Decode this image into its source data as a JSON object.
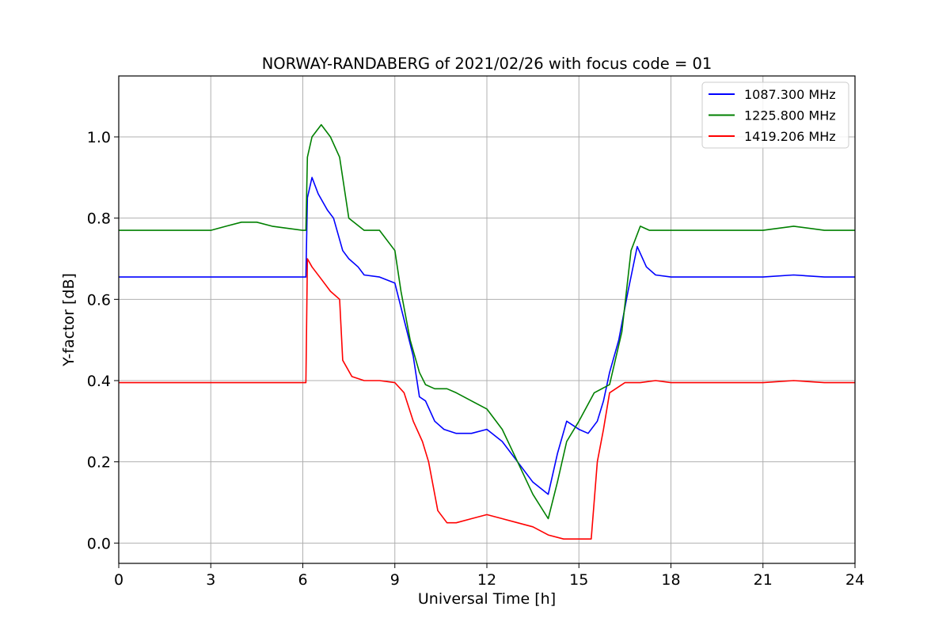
{
  "chart_data": {
    "type": "line",
    "title": "NORWAY-RANDABERG of 2021/02/26 with focus code = 01",
    "xlabel": "Universal Time [h]",
    "ylabel": "Y-factor [dB]",
    "xlim": [
      0,
      24
    ],
    "ylim": [
      -0.05,
      1.15
    ],
    "xticks": [
      0,
      3,
      6,
      9,
      12,
      15,
      18,
      21,
      24
    ],
    "yticks": [
      0.0,
      0.2,
      0.4,
      0.6,
      0.8,
      1.0
    ],
    "xtick_labels": [
      "0",
      "3",
      "6",
      "9",
      "12",
      "15",
      "18",
      "21",
      "24"
    ],
    "ytick_labels": [
      "0.0",
      "0.2",
      "0.4",
      "0.6",
      "0.8",
      "1.0"
    ],
    "grid": true,
    "legend_position": "top-right",
    "series": [
      {
        "name": "1087.300 MHz",
        "color": "#0000ff",
        "x": [
          0,
          1,
          2,
          3,
          4,
          5,
          6,
          6.1,
          6.15,
          6.3,
          6.5,
          6.8,
          7.0,
          7.3,
          7.5,
          7.8,
          8.0,
          8.5,
          9.0,
          9.3,
          9.6,
          9.8,
          10.0,
          10.3,
          10.6,
          11.0,
          11.5,
          12.0,
          12.5,
          13.0,
          13.5,
          14.0,
          14.3,
          14.6,
          15.0,
          15.3,
          15.6,
          15.8,
          16.0,
          16.3,
          16.6,
          16.9,
          17.2,
          17.5,
          18.0,
          19,
          20,
          21,
          22,
          23,
          24
        ],
        "y": [
          0.655,
          0.655,
          0.655,
          0.655,
          0.655,
          0.655,
          0.655,
          0.655,
          0.85,
          0.9,
          0.86,
          0.82,
          0.8,
          0.72,
          0.7,
          0.68,
          0.66,
          0.655,
          0.64,
          0.55,
          0.46,
          0.36,
          0.35,
          0.3,
          0.28,
          0.27,
          0.27,
          0.28,
          0.25,
          0.2,
          0.15,
          0.12,
          0.22,
          0.3,
          0.28,
          0.27,
          0.3,
          0.35,
          0.42,
          0.5,
          0.62,
          0.73,
          0.68,
          0.66,
          0.655,
          0.655,
          0.655,
          0.655,
          0.66,
          0.655,
          0.655
        ]
      },
      {
        "name": "1225.800 MHz",
        "color": "#008000",
        "x": [
          0,
          1,
          2,
          3,
          3.5,
          4,
          4.5,
          5,
          6.0,
          6.1,
          6.15,
          6.3,
          6.6,
          6.9,
          7.2,
          7.5,
          8.0,
          8.5,
          9.0,
          9.2,
          9.5,
          9.8,
          10.0,
          10.3,
          10.7,
          11.0,
          11.5,
          12.0,
          12.5,
          13.0,
          13.5,
          14.0,
          14.3,
          14.6,
          15.0,
          15.5,
          16.0,
          16.4,
          16.7,
          17.0,
          17.3,
          17.5,
          18.0,
          19,
          20,
          21,
          22,
          23,
          24
        ],
        "y": [
          0.77,
          0.77,
          0.77,
          0.77,
          0.78,
          0.79,
          0.79,
          0.78,
          0.77,
          0.77,
          0.95,
          1.0,
          1.03,
          1.0,
          0.95,
          0.8,
          0.77,
          0.77,
          0.72,
          0.62,
          0.5,
          0.42,
          0.39,
          0.38,
          0.38,
          0.37,
          0.35,
          0.33,
          0.28,
          0.2,
          0.12,
          0.06,
          0.15,
          0.25,
          0.3,
          0.37,
          0.39,
          0.52,
          0.72,
          0.78,
          0.77,
          0.77,
          0.77,
          0.77,
          0.77,
          0.77,
          0.78,
          0.77,
          0.77
        ]
      },
      {
        "name": "1419.206 MHz",
        "color": "#ff0000",
        "x": [
          0,
          1,
          2,
          3,
          4,
          5,
          6.0,
          6.1,
          6.15,
          6.3,
          6.6,
          6.9,
          7.2,
          7.3,
          7.6,
          8.0,
          8.5,
          9.0,
          9.3,
          9.6,
          9.9,
          10.1,
          10.4,
          10.7,
          11.0,
          11.5,
          12.0,
          12.5,
          13.0,
          13.5,
          14.0,
          14.5,
          15.0,
          15.4,
          15.6,
          15.8,
          16.0,
          16.5,
          17.0,
          17.5,
          18.0,
          19,
          20,
          21,
          22,
          23,
          24
        ],
        "y": [
          0.395,
          0.395,
          0.395,
          0.395,
          0.395,
          0.395,
          0.395,
          0.395,
          0.7,
          0.68,
          0.65,
          0.62,
          0.6,
          0.45,
          0.41,
          0.4,
          0.4,
          0.395,
          0.37,
          0.3,
          0.25,
          0.2,
          0.08,
          0.05,
          0.05,
          0.06,
          0.07,
          0.06,
          0.05,
          0.04,
          0.02,
          0.01,
          0.01,
          0.01,
          0.2,
          0.28,
          0.37,
          0.395,
          0.395,
          0.4,
          0.395,
          0.395,
          0.395,
          0.395,
          0.4,
          0.395,
          0.395
        ]
      }
    ]
  }
}
